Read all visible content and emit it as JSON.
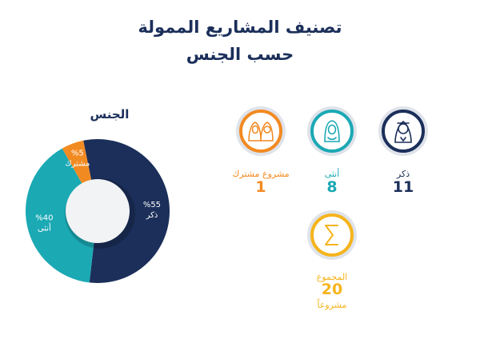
{
  "header": {
    "title_line1": "تصنيف المشاريع الممولة",
    "title_line2": "حسب الجنس"
  },
  "chart_title": "الجنس",
  "chart_data": {
    "type": "pie",
    "title": "الجنس",
    "slices": [
      {
        "label": "ذكر",
        "pct_label": "%55",
        "value": 55,
        "color": "#1b2f5a"
      },
      {
        "label": "أنثى",
        "pct_label": "%40",
        "value": 40,
        "color": "#1ba9b4"
      },
      {
        "label": "مشترك",
        "pct_label": "%5",
        "value": 5,
        "color": "#f28a22"
      }
    ]
  },
  "categories": [
    {
      "key": "male",
      "label": "ذكر",
      "value": "11",
      "color": "#1b2f5a",
      "icon": "male-person-icon"
    },
    {
      "key": "female",
      "label": "أنثى",
      "value": "8",
      "color": "#1ba9b4",
      "icon": "female-person-icon"
    },
    {
      "key": "shared",
      "label": "مشروع مشترك",
      "value": "1",
      "color": "#f28a22",
      "icon": "couple-icon"
    }
  ],
  "total": {
    "label": "المجموع",
    "value": "20",
    "unit": "مشروعاً",
    "color": "#f5b41d",
    "icon": "sigma-icon"
  }
}
